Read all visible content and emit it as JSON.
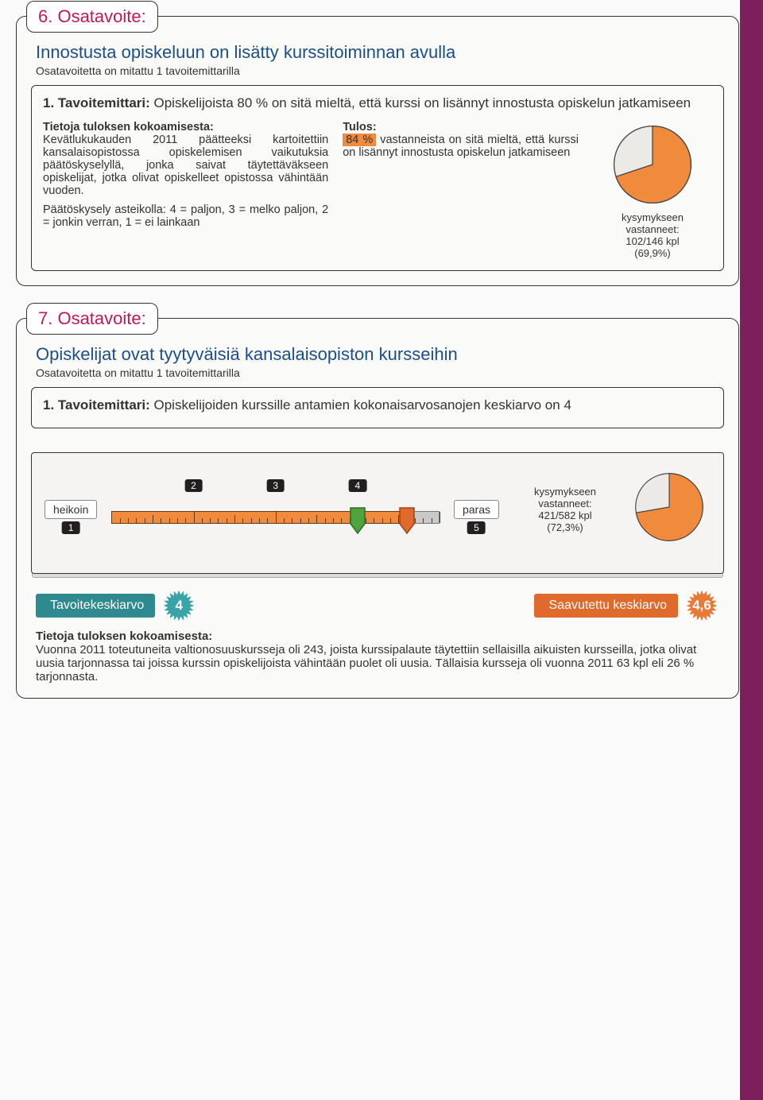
{
  "section6": {
    "tab": "6. Osatavoite:",
    "title": "Innostusta opiskeluun on lisätty kurssitoiminnan avulla",
    "subtitle": "Osatavoitetta on mitattu 1 tavoitemittarilla",
    "mittari_label": "1. Tavoitemittari:",
    "mittari_text": " Opiskelijoista 80 % on sitä mieltä, että kurssi on lisännyt innostusta opiskelun jatkamiseen",
    "left_head": "Tietoja tuloksen kokoamisesta:",
    "left_p1": "Kevätlukukauden 2011 päätteeksi kartoitettiin kansalaisopistossa opiskelemisen vaikutuksia päätöskyselyllä, jonka saivat täytettäväkseen opiskelijat, jotka olivat opiskelleet opistossa vähintään vuoden.",
    "left_p2": "Päätöskysely asteikolla: 4 = paljon, 3 = melko paljon, 2 = jonkin verran, 1 = ei lainkaan",
    "mid_head": "Tulos:",
    "mid_hl": "84 %",
    "mid_text": " vastanneista on sitä mieltä, että kurssi on lisännyt innostusta opiskelun jatkamiseen",
    "pie": {
      "percent": 69.9,
      "fill": "#f08a3c",
      "rest": "#eceae6",
      "stroke": "#444"
    },
    "resp_l1": "kysymykseen",
    "resp_l2": "vastanneet:",
    "resp_l3": "102/146 kpl",
    "resp_l4": "(69,9%)"
  },
  "section7": {
    "tab": "7. Osatavoite:",
    "title": "Opiskelijat ovat tyytyväisiä kansalaisopiston kursseihin",
    "subtitle": "Osatavoitetta on mitattu 1 tavoitemittarilla",
    "mittari_label": "1. Tavoitemittari:",
    "mittari_text": " Opiskelijoiden kurssille antamien kokonaisarvosanojen keskiarvo on 4",
    "scale": {
      "min_label": "heikoin",
      "max_label": "paras",
      "min": 1,
      "max": 5,
      "ticks": [
        1,
        2,
        3,
        4,
        5
      ],
      "target": 4,
      "achieved": 4.6,
      "orange_color": "#f08a3c",
      "grey_color": "#c9c9c9"
    },
    "resp": {
      "l1": "kysymykseen",
      "l2": "vastanneet:",
      "l3": "421/582 kpl",
      "l4": "(72,3%)"
    },
    "pie": {
      "percent": 72.3,
      "fill": "#f08a3c",
      "rest": "#eceae6",
      "stroke": "#444"
    },
    "target_label": "Tavoitekeskiarvo",
    "target_val": "4",
    "ach_label": "Saavutettu keskiarvo",
    "ach_val": "4,6",
    "burst_teal": "#3aa3a8",
    "burst_orange": "#e87a35",
    "info_head": "Tietoja tuloksen kokoamisesta:",
    "info_text": "Vuonna 2011 toteutuneita valtionosuuskursseja oli 243, joista kurssipalaute täytettiin sellaisilla aikuisten kursseilla, jotka olivat uusia tarjonnassa tai joissa kurssin opiskelijoista vähintään puolet oli uusia. Tällaisia kursseja oli vuonna 2011 63 kpl eli 26 % tarjonnasta."
  }
}
